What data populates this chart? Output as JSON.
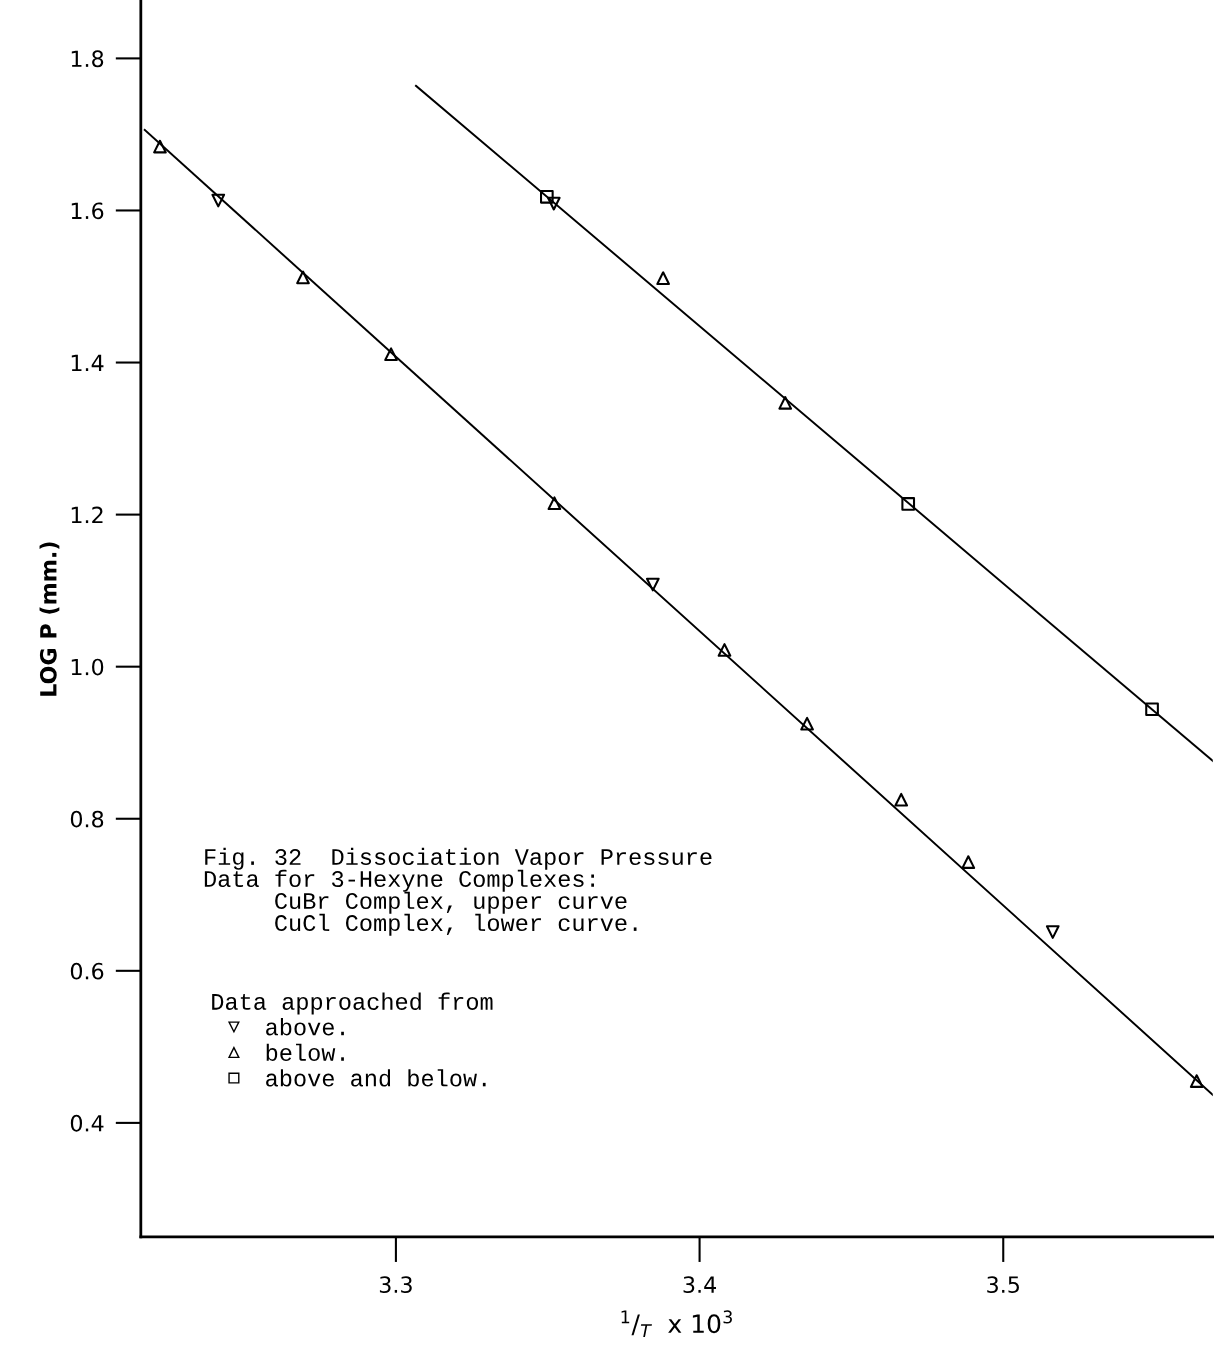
{
  "chart_data": {
    "type": "scatter",
    "xlabel": "$^{1}$/$_{T}$  x 10$^{3}$",
    "ylabel": "LOG P (mm.)",
    "legend_title": "Data approached from",
    "annotations": [
      "Fig. 32  Dissociation Vapor Pressure\nData for 3-Hexyne Complexes:\n     CuBr Complex, upper curve\n     CuCl Complex, lower curve."
    ],
    "xlim": [
      3.216,
      3.569
    ],
    "xticks": [
      3.3,
      3.4,
      3.5
    ],
    "ylim": [
      0.25,
      1.875
    ],
    "yticks": [
      0.4,
      0.6,
      0.8,
      {
        "value": 1.0,
        "label": "1.0"
      },
      1.2,
      1.4,
      1.6,
      1.8
    ],
    "grid": false,
    "legend": "bottom left",
    "series": [
      {
        "type": "line",
        "color": "#000000",
        "marker": "none",
        "line_style": "solid",
        "x": [
          3.3066,
          3.569
        ],
        "values": [
          1.764,
          0.876
        ]
      },
      {
        "type": "line",
        "color": "#000000",
        "marker": "none",
        "line_style": "solid",
        "x": [
          3.2173,
          3.569
        ],
        "values": [
          1.706,
          0.437
        ]
      },
      {
        "name": "above.",
        "marker": "triangle_down",
        "color": "#000000",
        "x": [
          3.2415,
          3.352,
          3.3846,
          3.5163
        ],
        "values": [
          1.613,
          1.609,
          1.108,
          0.651
        ]
      },
      {
        "name": "below.",
        "marker": "triangle",
        "color": "#000000",
        "x": [
          3.2223,
          3.2694,
          3.2984,
          3.3522,
          3.388,
          3.4082,
          3.4282,
          3.4354,
          3.4664,
          3.4885,
          3.5637
        ],
        "values": [
          1.684,
          1.512,
          1.411,
          1.215,
          1.511,
          1.022,
          1.347,
          0.925,
          0.825,
          0.743,
          0.455
        ]
      },
      {
        "name": "above and below.",
        "marker": "square",
        "color": "#000000",
        "x": [
          3.3497,
          3.4687,
          3.549
        ],
        "values": [
          1.618,
          1.214,
          0.944
        ]
      }
    ]
  }
}
